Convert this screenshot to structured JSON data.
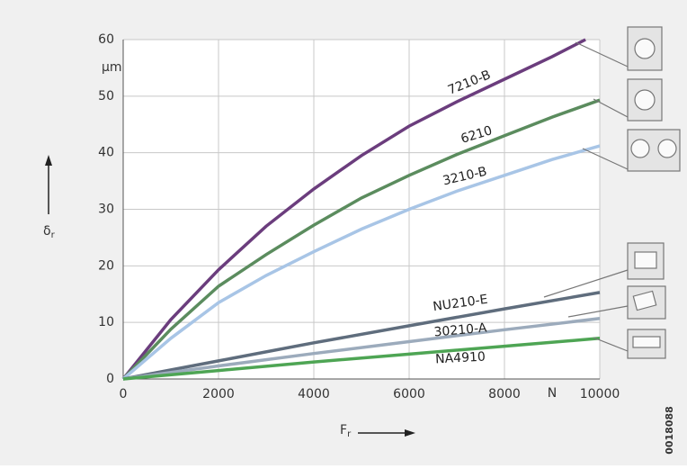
{
  "chart_data": {
    "type": "line",
    "y_label": "δ",
    "y_label_subscript": "r",
    "x_label": "F",
    "x_label_subscript": "r",
    "y_unit": "μm",
    "x_unit": "N",
    "figure_id": "0018088",
    "xlim": [
      0,
      10000
    ],
    "ylim": [
      0,
      60
    ],
    "xticks": [
      0,
      2000,
      4000,
      6000,
      8000,
      10000
    ],
    "yticks": [
      0,
      10,
      20,
      30,
      40,
      50,
      60
    ],
    "grid": true,
    "series": [
      {
        "name": "7210-B",
        "color": "#6b3d7d",
        "x": [
          0,
          1000,
          2000,
          3000,
          4000,
          5000,
          6000,
          7000,
          8000,
          9000,
          9700
        ],
        "values": [
          0,
          10.5,
          19.3,
          27,
          33.6,
          39.5,
          44.7,
          49,
          53,
          57,
          60
        ]
      },
      {
        "name": "6210",
        "color": "#5b8c5e",
        "x": [
          0,
          1000,
          2000,
          3000,
          4000,
          5000,
          6000,
          7000,
          8000,
          9000,
          10000
        ],
        "values": [
          0,
          8.8,
          16.4,
          22,
          27.2,
          32,
          36,
          39.7,
          43,
          46.3,
          49.3
        ]
      },
      {
        "name": "3210-B",
        "color": "#a8c5e6",
        "x": [
          0,
          1000,
          2000,
          3000,
          4000,
          5000,
          6000,
          7000,
          8000,
          9000,
          10000
        ],
        "values": [
          0,
          7.2,
          13.5,
          18.3,
          22.5,
          26.5,
          30,
          33.2,
          36,
          38.8,
          41.2
        ]
      },
      {
        "name": "NU210-E",
        "color": "#5f6d7d",
        "x": [
          0,
          2000,
          4000,
          6000,
          8000,
          10000
        ],
        "values": [
          0,
          3.2,
          6.4,
          9.4,
          12.4,
          15.3
        ]
      },
      {
        "name": "30210-A",
        "color": "#9cabbc",
        "x": [
          0,
          2000,
          4000,
          6000,
          8000,
          10000
        ],
        "values": [
          0,
          2.3,
          4.5,
          6.6,
          8.7,
          10.7
        ]
      },
      {
        "name": "NA4910",
        "color": "#4ea554",
        "x": [
          0,
          2000,
          4000,
          6000,
          8000,
          10000
        ],
        "values": [
          0,
          1.5,
          3,
          4.4,
          5.8,
          7.2
        ]
      }
    ]
  }
}
